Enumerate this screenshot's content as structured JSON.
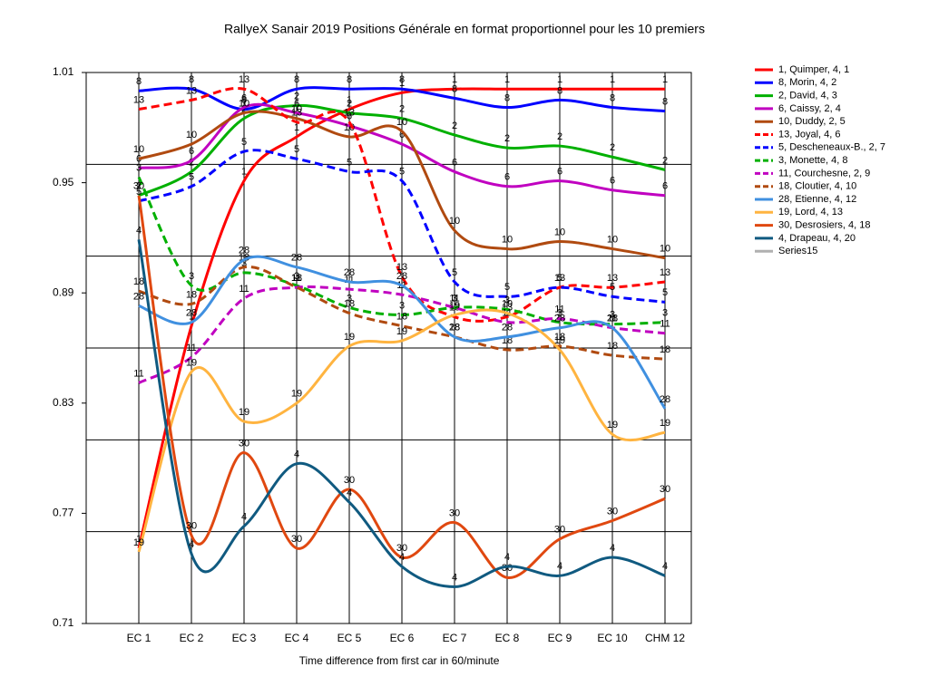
{
  "chart_data": {
    "type": "line",
    "title": "RallyeX Sanair 2019  Positions Générale en format proportionnel pour les 10 premiers",
    "x_label": "Time difference from first car in 60/minute",
    "categories": [
      "EC 1",
      "EC 2",
      "EC 3",
      "EC 4",
      "EC 5",
      "EC 6",
      "EC 7",
      "EC 8",
      "EC 9",
      "EC 10",
      "CHM 12"
    ],
    "ylim": [
      0.71,
      1.01
    ],
    "yticks": [
      0.71,
      0.77,
      0.83,
      0.89,
      0.95,
      1.01
    ],
    "ygrid": [
      0.71,
      0.76,
      0.81,
      0.86,
      0.91,
      0.96,
      1.01
    ],
    "xgrid": true,
    "smooth": true,
    "legend": "right",
    "series": [
      {
        "name": "1, Quimper, 4, 1",
        "point_label": "1",
        "color": "#ff0000",
        "dash": false,
        "values": [
          0.751,
          0.872,
          0.951,
          0.975,
          0.99,
          0.999,
          1.001,
          1.001,
          1.001,
          1.001,
          1.001
        ]
      },
      {
        "name": "8, Morin, 4, 2",
        "point_label": "8",
        "color": "#0000ff",
        "dash": false,
        "values": [
          1.0,
          1.001,
          0.99,
          1.001,
          1.001,
          1.001,
          0.996,
          0.991,
          0.995,
          0.991,
          0.989
        ]
      },
      {
        "name": "2, David, 4, 3",
        "point_label": "2",
        "color": "#00b000",
        "dash": false,
        "values": [
          0.943,
          0.956,
          0.985,
          0.992,
          0.988,
          0.985,
          0.976,
          0.969,
          0.97,
          0.964,
          0.957
        ]
      },
      {
        "name": "6, Caissy, 2, 4",
        "point_label": "6",
        "color": "#c000c0",
        "dash": false,
        "values": [
          0.958,
          0.962,
          0.991,
          0.988,
          0.981,
          0.971,
          0.956,
          0.948,
          0.951,
          0.946,
          0.943
        ]
      },
      {
        "name": "10, Duddy, 2, 5",
        "point_label": "10",
        "color": "#b04a10",
        "dash": false,
        "values": [
          0.963,
          0.971,
          0.988,
          0.985,
          0.975,
          0.978,
          0.924,
          0.914,
          0.918,
          0.914,
          0.909
        ]
      },
      {
        "name": "13, Joyal, 4, 6",
        "point_label": "13",
        "color": "#ff0000",
        "dash": true,
        "values": [
          0.99,
          0.995,
          1.001,
          0.983,
          0.983,
          0.899,
          0.877,
          0.877,
          0.893,
          0.893,
          0.896
        ]
      },
      {
        "name": "5, Descheneaux-B., 2, 7",
        "point_label": "5",
        "color": "#0000ff",
        "dash": true,
        "values": [
          0.94,
          0.948,
          0.967,
          0.963,
          0.956,
          0.951,
          0.896,
          0.888,
          0.893,
          0.888,
          0.885
        ]
      },
      {
        "name": "3, Monette, 4, 8",
        "point_label": "3",
        "color": "#00b000",
        "dash": true,
        "values": [
          0.953,
          0.894,
          0.901,
          0.894,
          0.882,
          0.878,
          0.882,
          0.881,
          0.874,
          0.873,
          0.874
        ]
      },
      {
        "name": "11, Courchesne, 2, 9",
        "point_label": "11",
        "color": "#c000c0",
        "dash": true,
        "values": [
          0.841,
          0.855,
          0.887,
          0.893,
          0.892,
          0.889,
          0.882,
          0.874,
          0.876,
          0.871,
          0.868
        ]
      },
      {
        "name": "18, Cloutier, 4, 10",
        "point_label": "18",
        "color": "#b04a10",
        "dash": true,
        "values": [
          0.891,
          0.884,
          0.904,
          0.893,
          0.879,
          0.872,
          0.866,
          0.859,
          0.861,
          0.856,
          0.854
        ]
      },
      {
        "name": "28, Etienne, 4, 12",
        "point_label": "28",
        "color": "#4090e0",
        "dash": false,
        "values": [
          0.883,
          0.874,
          0.908,
          0.904,
          0.896,
          0.894,
          0.866,
          0.866,
          0.871,
          0.871,
          0.827
        ]
      },
      {
        "name": "19, Lord, 4, 13",
        "point_label": "19",
        "color": "#ffb440",
        "dash": false,
        "values": [
          0.749,
          0.847,
          0.82,
          0.83,
          0.861,
          0.864,
          0.878,
          0.879,
          0.859,
          0.813,
          0.814
        ]
      },
      {
        "name": "30, Desrosiers, 4, 18",
        "point_label": "30",
        "color": "#e04810",
        "dash": false,
        "values": [
          0.943,
          0.758,
          0.803,
          0.751,
          0.783,
          0.746,
          0.765,
          0.735,
          0.756,
          0.766,
          0.778
        ]
      },
      {
        "name": "4, Drapeau, 4, 20",
        "point_label": "4",
        "color": "#105a80",
        "dash": false,
        "values": [
          0.919,
          0.748,
          0.763,
          0.797,
          0.776,
          0.741,
          0.73,
          0.741,
          0.736,
          0.746,
          0.736
        ]
      },
      {
        "name": "Series15",
        "color": "#b0b0b0",
        "dash": false,
        "values": [
          null,
          null,
          null,
          null,
          null,
          null,
          null,
          null,
          null,
          null,
          null
        ]
      }
    ]
  }
}
